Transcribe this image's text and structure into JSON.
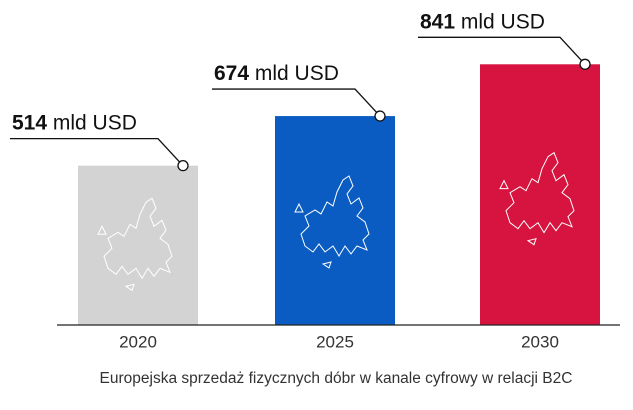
{
  "chart_data": {
    "type": "bar",
    "xlabel": "Europejska sprzedaż fizycznych dóbr w kanale cyfrowy w relacji B2C",
    "categories": [
      "2020",
      "2025",
      "2030"
    ],
    "values": [
      514,
      674,
      841
    ],
    "value_labels": [
      "514 mld USD",
      "674 mld USD",
      "841 mld USD"
    ],
    "colors": [
      "#d3d3d3",
      "#0a5cc2",
      "#d7143f"
    ],
    "ylim": [
      0,
      1000
    ]
  }
}
